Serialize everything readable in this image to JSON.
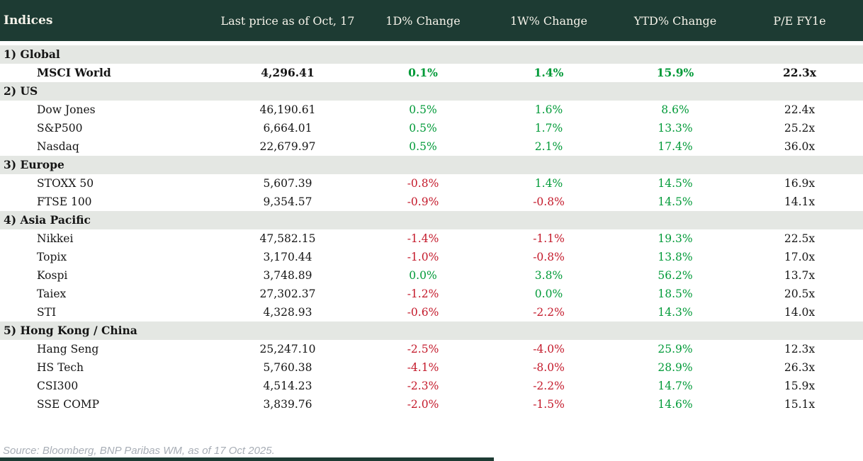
{
  "colors": {
    "header_bg": "#1d3b33",
    "header_text": "#f6f3ea",
    "section_band_bg": "#e4e7e3",
    "positive_green": "#019a38",
    "negative_red": "#c41a2b",
    "body_text": "#151515",
    "source_text": "#a8aeb6"
  },
  "table": {
    "columns": [
      "Indices",
      "Last price as of Oct, 17",
      "1D% Change",
      "1W% Change",
      "YTD% Change",
      "P/E FY1e"
    ],
    "sections": [
      {
        "label": "1) Global",
        "rows": [
          {
            "name": "MSCI World",
            "price": "4,296.41",
            "d1": "0.1%",
            "w1": "1.4%",
            "ytd": "15.9%",
            "pe": "22.3x",
            "bold": true
          }
        ]
      },
      {
        "label": "2) US",
        "rows": [
          {
            "name": "Dow Jones",
            "price": "46,190.61",
            "d1": "0.5%",
            "w1": "1.6%",
            "ytd": "8.6%",
            "pe": "22.4x",
            "bold": false
          },
          {
            "name": "S&P500",
            "price": "6,664.01",
            "d1": "0.5%",
            "w1": "1.7%",
            "ytd": "13.3%",
            "pe": "25.2x",
            "bold": false
          },
          {
            "name": "Nasdaq",
            "price": "22,679.97",
            "d1": "0.5%",
            "w1": "2.1%",
            "ytd": "17.4%",
            "pe": "36.0x",
            "bold": false
          }
        ]
      },
      {
        "label": "3) Europe",
        "rows": [
          {
            "name": "STOXX 50",
            "price": "5,607.39",
            "d1": "-0.8%",
            "w1": "1.4%",
            "ytd": "14.5%",
            "pe": "16.9x",
            "bold": false
          },
          {
            "name": "FTSE 100",
            "price": "9,354.57",
            "d1": "-0.9%",
            "w1": "-0.8%",
            "ytd": "14.5%",
            "pe": "14.1x",
            "bold": false
          }
        ]
      },
      {
        "label": "4) Asia Pacific",
        "rows": [
          {
            "name": "Nikkei",
            "price": "47,582.15",
            "d1": "-1.4%",
            "w1": "-1.1%",
            "ytd": "19.3%",
            "pe": "22.5x",
            "bold": false
          },
          {
            "name": "Topix",
            "price": "3,170.44",
            "d1": "-1.0%",
            "w1": "-0.8%",
            "ytd": "13.8%",
            "pe": "17.0x",
            "bold": false
          },
          {
            "name": "Kospi",
            "price": "3,748.89",
            "d1": "0.0%",
            "w1": "3.8%",
            "ytd": "56.2%",
            "pe": "13.7x",
            "bold": false
          },
          {
            "name": "Taiex",
            "price": "27,302.37",
            "d1": "-1.2%",
            "w1": "0.0%",
            "ytd": "18.5%",
            "pe": "20.5x",
            "bold": false
          },
          {
            "name": "STI",
            "price": "4,328.93",
            "d1": "-0.6%",
            "w1": "-2.2%",
            "ytd": "14.3%",
            "pe": "14.0x",
            "bold": false
          }
        ]
      },
      {
        "label": "5) Hong Kong / China",
        "rows": [
          {
            "name": "Hang Seng",
            "price": "25,247.10",
            "d1": "-2.5%",
            "w1": "-4.0%",
            "ytd": "25.9%",
            "pe": "12.3x",
            "bold": false
          },
          {
            "name": "HS Tech",
            "price": "5,760.38",
            "d1": "-4.1%",
            "w1": "-8.0%",
            "ytd": "28.9%",
            "pe": "26.3x",
            "bold": false
          },
          {
            "name": "CSI300",
            "price": "4,514.23",
            "d1": "-2.3%",
            "w1": "-2.2%",
            "ytd": "14.7%",
            "pe": "15.9x",
            "bold": false
          },
          {
            "name": "SSE COMP",
            "price": "3,839.76",
            "d1": "-2.0%",
            "w1": "-1.5%",
            "ytd": "14.6%",
            "pe": "15.1x",
            "bold": false
          }
        ]
      }
    ]
  },
  "footer": {
    "source": "Source: Bloomberg, BNP Paribas WM, as of 17 Oct 2025."
  }
}
